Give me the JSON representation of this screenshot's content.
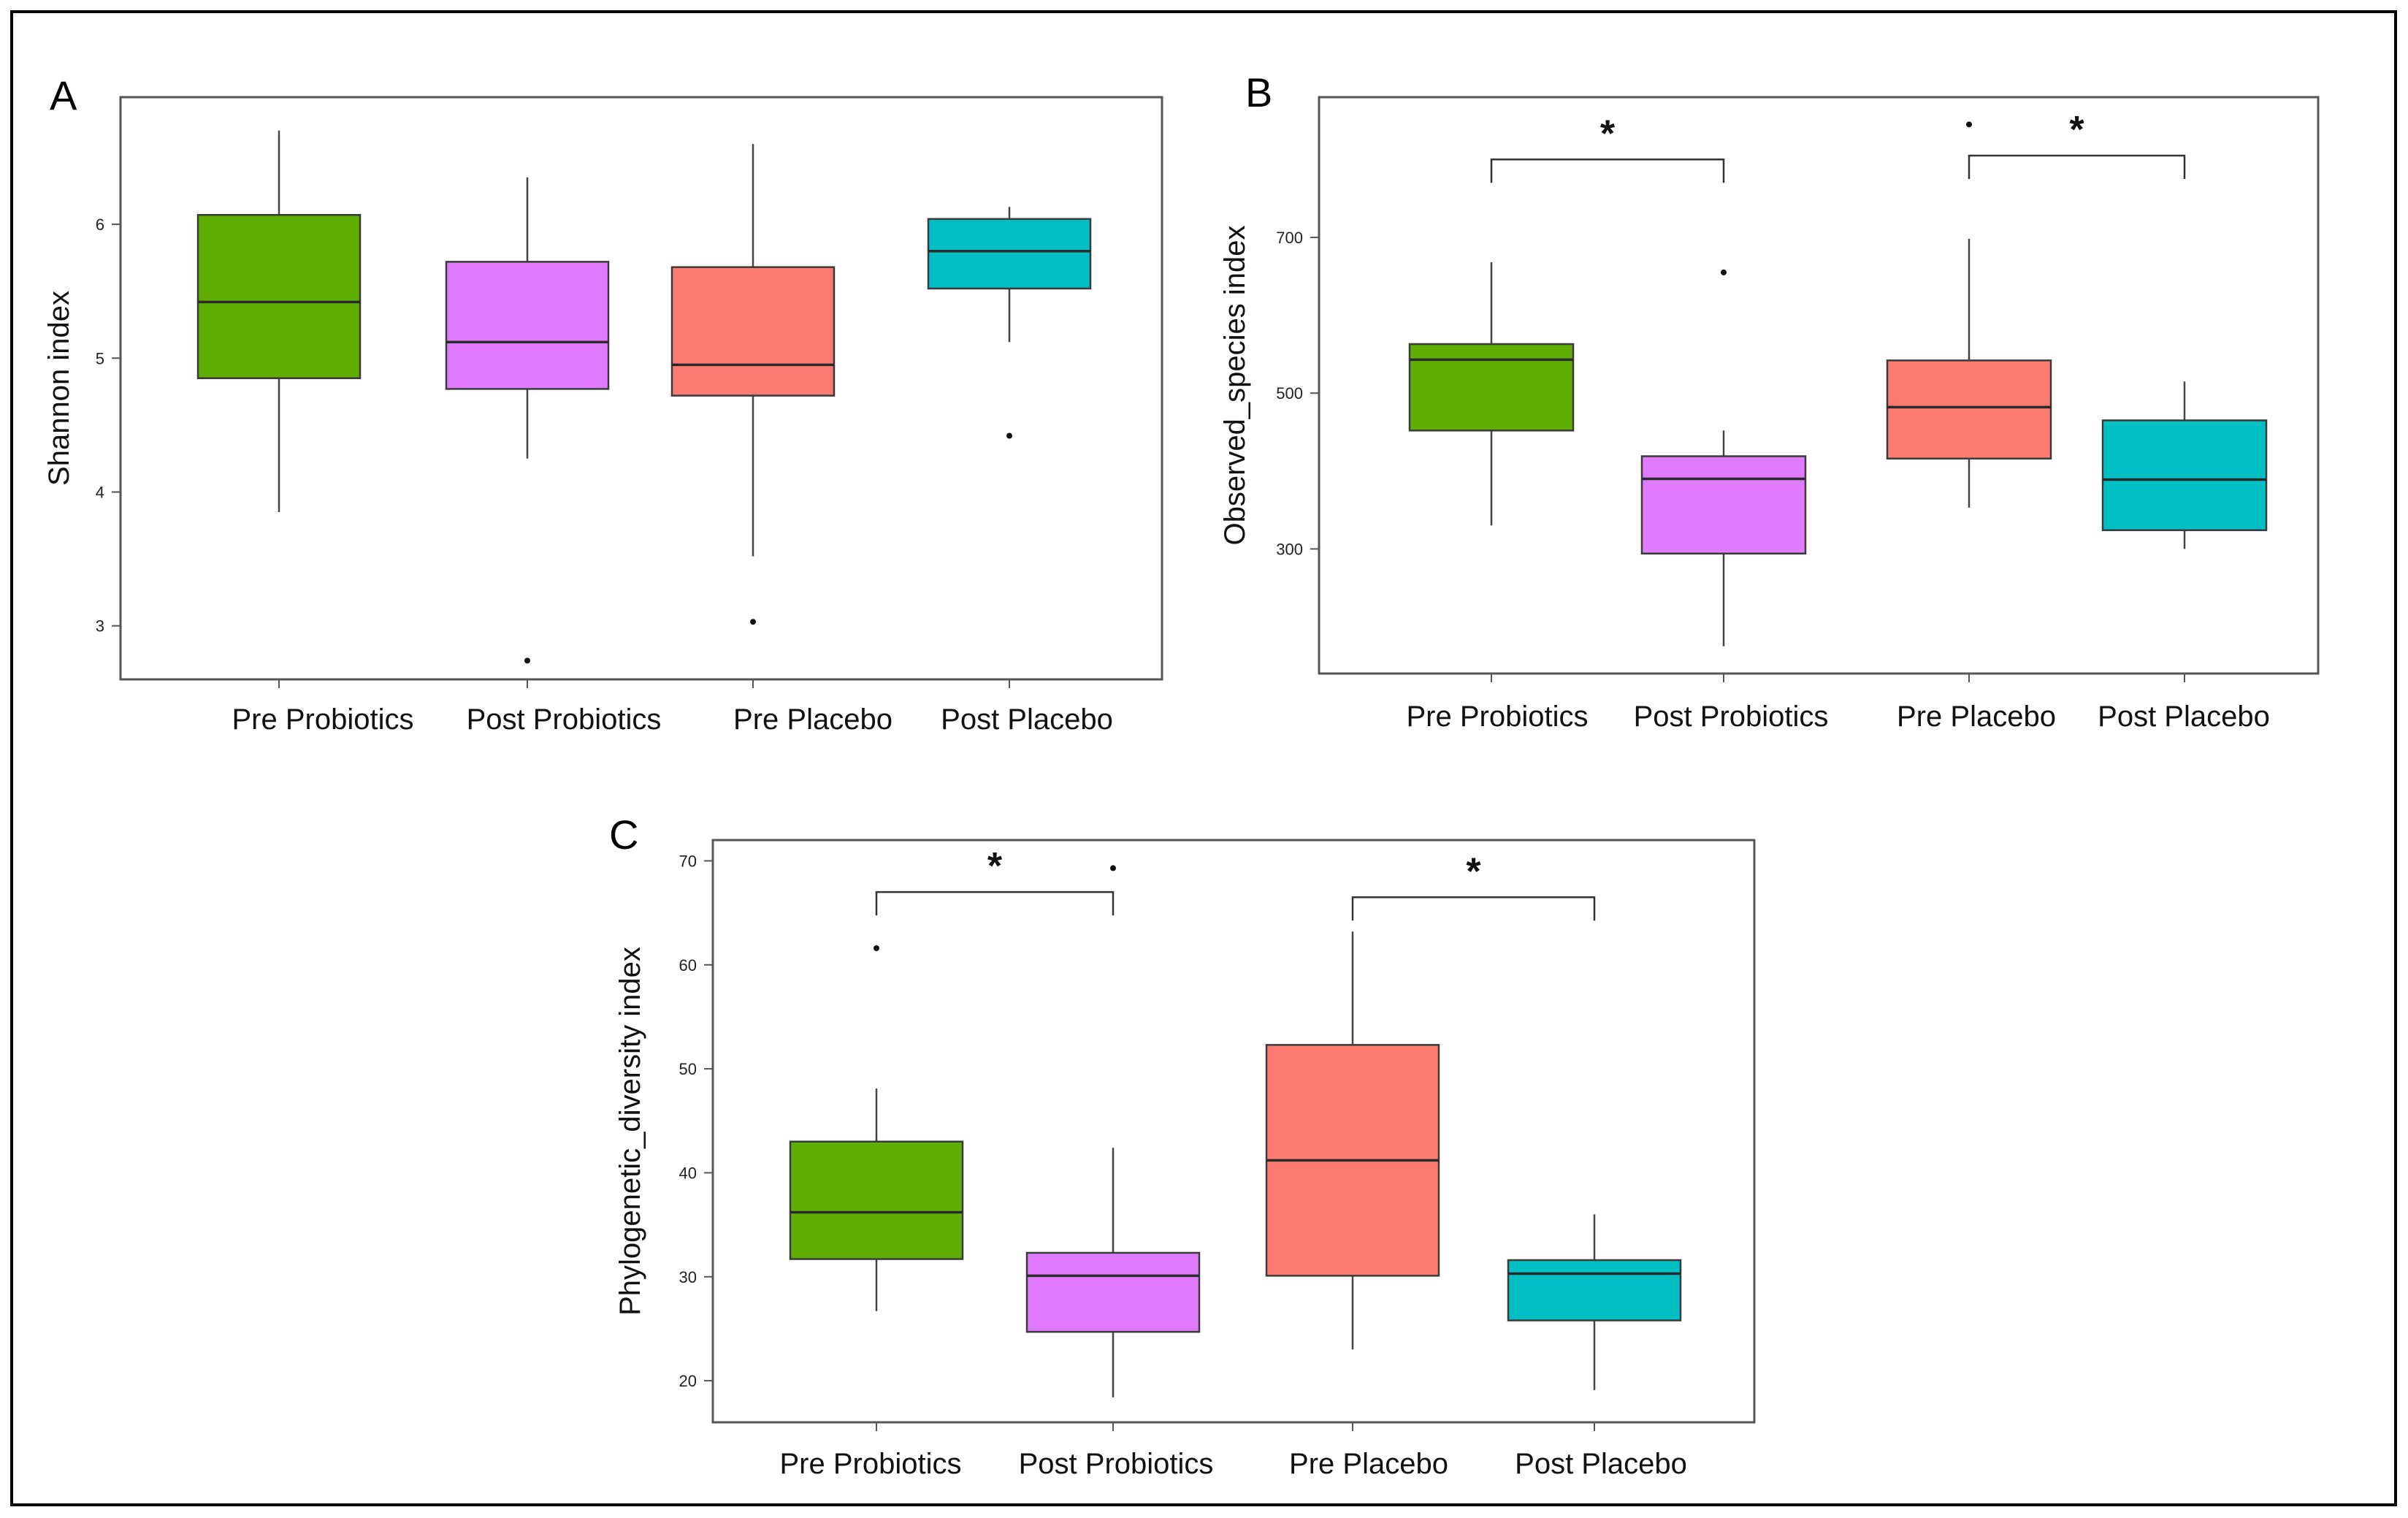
{
  "panels": [
    {
      "letter": "A",
      "ylabel": "Shannon index",
      "ylim": [
        2.6,
        6.95
      ],
      "yticks": [
        3,
        4,
        5,
        6
      ],
      "categories": [
        "Pre Probiotics",
        "Post Probiotics",
        "Pre Placebo",
        "Post Placebo"
      ],
      "colors": [
        "#5FAD00",
        "#E07BFF",
        "#FA7B72",
        "#00BFC4"
      ],
      "boxes": [
        {
          "whisker_low": 3.85,
          "q1": 4.85,
          "median": 5.42,
          "q3": 6.07,
          "whisker_high": 6.7,
          "outliers": []
        },
        {
          "whisker_low": 4.25,
          "q1": 4.77,
          "median": 5.12,
          "q3": 5.72,
          "whisker_high": 6.35,
          "outliers": [
            2.74
          ]
        },
        {
          "whisker_low": 3.52,
          "q1": 4.72,
          "median": 4.95,
          "q3": 5.68,
          "whisker_high": 6.6,
          "outliers": [
            3.03
          ]
        },
        {
          "whisker_low": 5.12,
          "q1": 5.52,
          "median": 5.8,
          "q3": 6.04,
          "whisker_high": 6.13,
          "outliers": [
            4.42
          ]
        }
      ],
      "significance": []
    },
    {
      "letter": "B",
      "ylabel": "Observed_species index",
      "ylim": [
        140,
        880
      ],
      "yticks": [
        300,
        500,
        700
      ],
      "categories": [
        "Pre Probiotics",
        "Post Probiotics",
        "Pre Placebo",
        "Post Placebo"
      ],
      "colors": [
        "#5FAD00",
        "#E07BFF",
        "#FA7B72",
        "#00BFC4"
      ],
      "boxes": [
        {
          "whisker_low": 330,
          "q1": 452,
          "median": 543,
          "q3": 563,
          "whisker_high": 668,
          "outliers": []
        },
        {
          "whisker_low": 175,
          "q1": 294,
          "median": 390,
          "q3": 419,
          "whisker_high": 452,
          "outliers": [
            655
          ]
        },
        {
          "whisker_low": 353,
          "q1": 416,
          "median": 482,
          "q3": 542,
          "whisker_high": 698,
          "outliers": [
            845
          ]
        },
        {
          "whisker_low": 300,
          "q1": 324,
          "median": 389,
          "q3": 465,
          "whisker_high": 515,
          "outliers": []
        }
      ],
      "significance": [
        {
          "from": 0,
          "to": 1,
          "label": "*",
          "level": 800
        },
        {
          "from": 2,
          "to": 3,
          "label": "*",
          "level": 805
        }
      ]
    },
    {
      "letter": "C",
      "ylabel": "Phylogenetic_diversity index",
      "ylim": [
        16,
        72
      ],
      "yticks": [
        20,
        30,
        40,
        50,
        60,
        70
      ],
      "categories": [
        "Pre Probiotics",
        "Post Probiotics",
        "Pre Placebo",
        "Post Placebo"
      ],
      "colors": [
        "#5FAD00",
        "#E07BFF",
        "#FA7B72",
        "#00BFC4"
      ],
      "boxes": [
        {
          "whisker_low": 26.7,
          "q1": 31.7,
          "median": 36.2,
          "q3": 43.0,
          "whisker_high": 48.1,
          "outliers": [
            61.6
          ]
        },
        {
          "whisker_low": 18.4,
          "q1": 24.7,
          "median": 30.1,
          "q3": 32.3,
          "whisker_high": 42.4,
          "outliers": [
            69.3
          ]
        },
        {
          "whisker_low": 23.0,
          "q1": 30.1,
          "median": 41.2,
          "q3": 52.3,
          "whisker_high": 63.2,
          "outliers": []
        },
        {
          "whisker_low": 19.1,
          "q1": 25.8,
          "median": 30.3,
          "q3": 31.6,
          "whisker_high": 36.0,
          "outliers": []
        }
      ],
      "significance": [
        {
          "from": 0,
          "to": 1,
          "label": "*",
          "level": 67.0
        },
        {
          "from": 2,
          "to": 3,
          "label": "*",
          "level": 66.5
        }
      ]
    }
  ],
  "chart_data": [
    {
      "type": "box",
      "title": "A",
      "ylabel": "Shannon index",
      "categories": [
        "Pre Probiotics",
        "Post Probiotics",
        "Pre Placebo",
        "Post Placebo"
      ],
      "ylim": [
        2.6,
        6.95
      ],
      "medians": [
        5.42,
        5.12,
        4.95,
        5.8
      ]
    },
    {
      "type": "box",
      "title": "B",
      "ylabel": "Observed_species index",
      "categories": [
        "Pre Probiotics",
        "Post Probiotics",
        "Pre Placebo",
        "Post Placebo"
      ],
      "ylim": [
        140,
        880
      ],
      "medians": [
        543,
        390,
        482,
        389
      ]
    },
    {
      "type": "box",
      "title": "C",
      "ylabel": "Phylogenetic_diversity index",
      "categories": [
        "Pre Probiotics",
        "Post Probiotics",
        "Pre Placebo",
        "Post Placebo"
      ],
      "ylim": [
        16,
        72
      ],
      "medians": [
        36.2,
        30.1,
        41.2,
        30.3
      ]
    }
  ]
}
